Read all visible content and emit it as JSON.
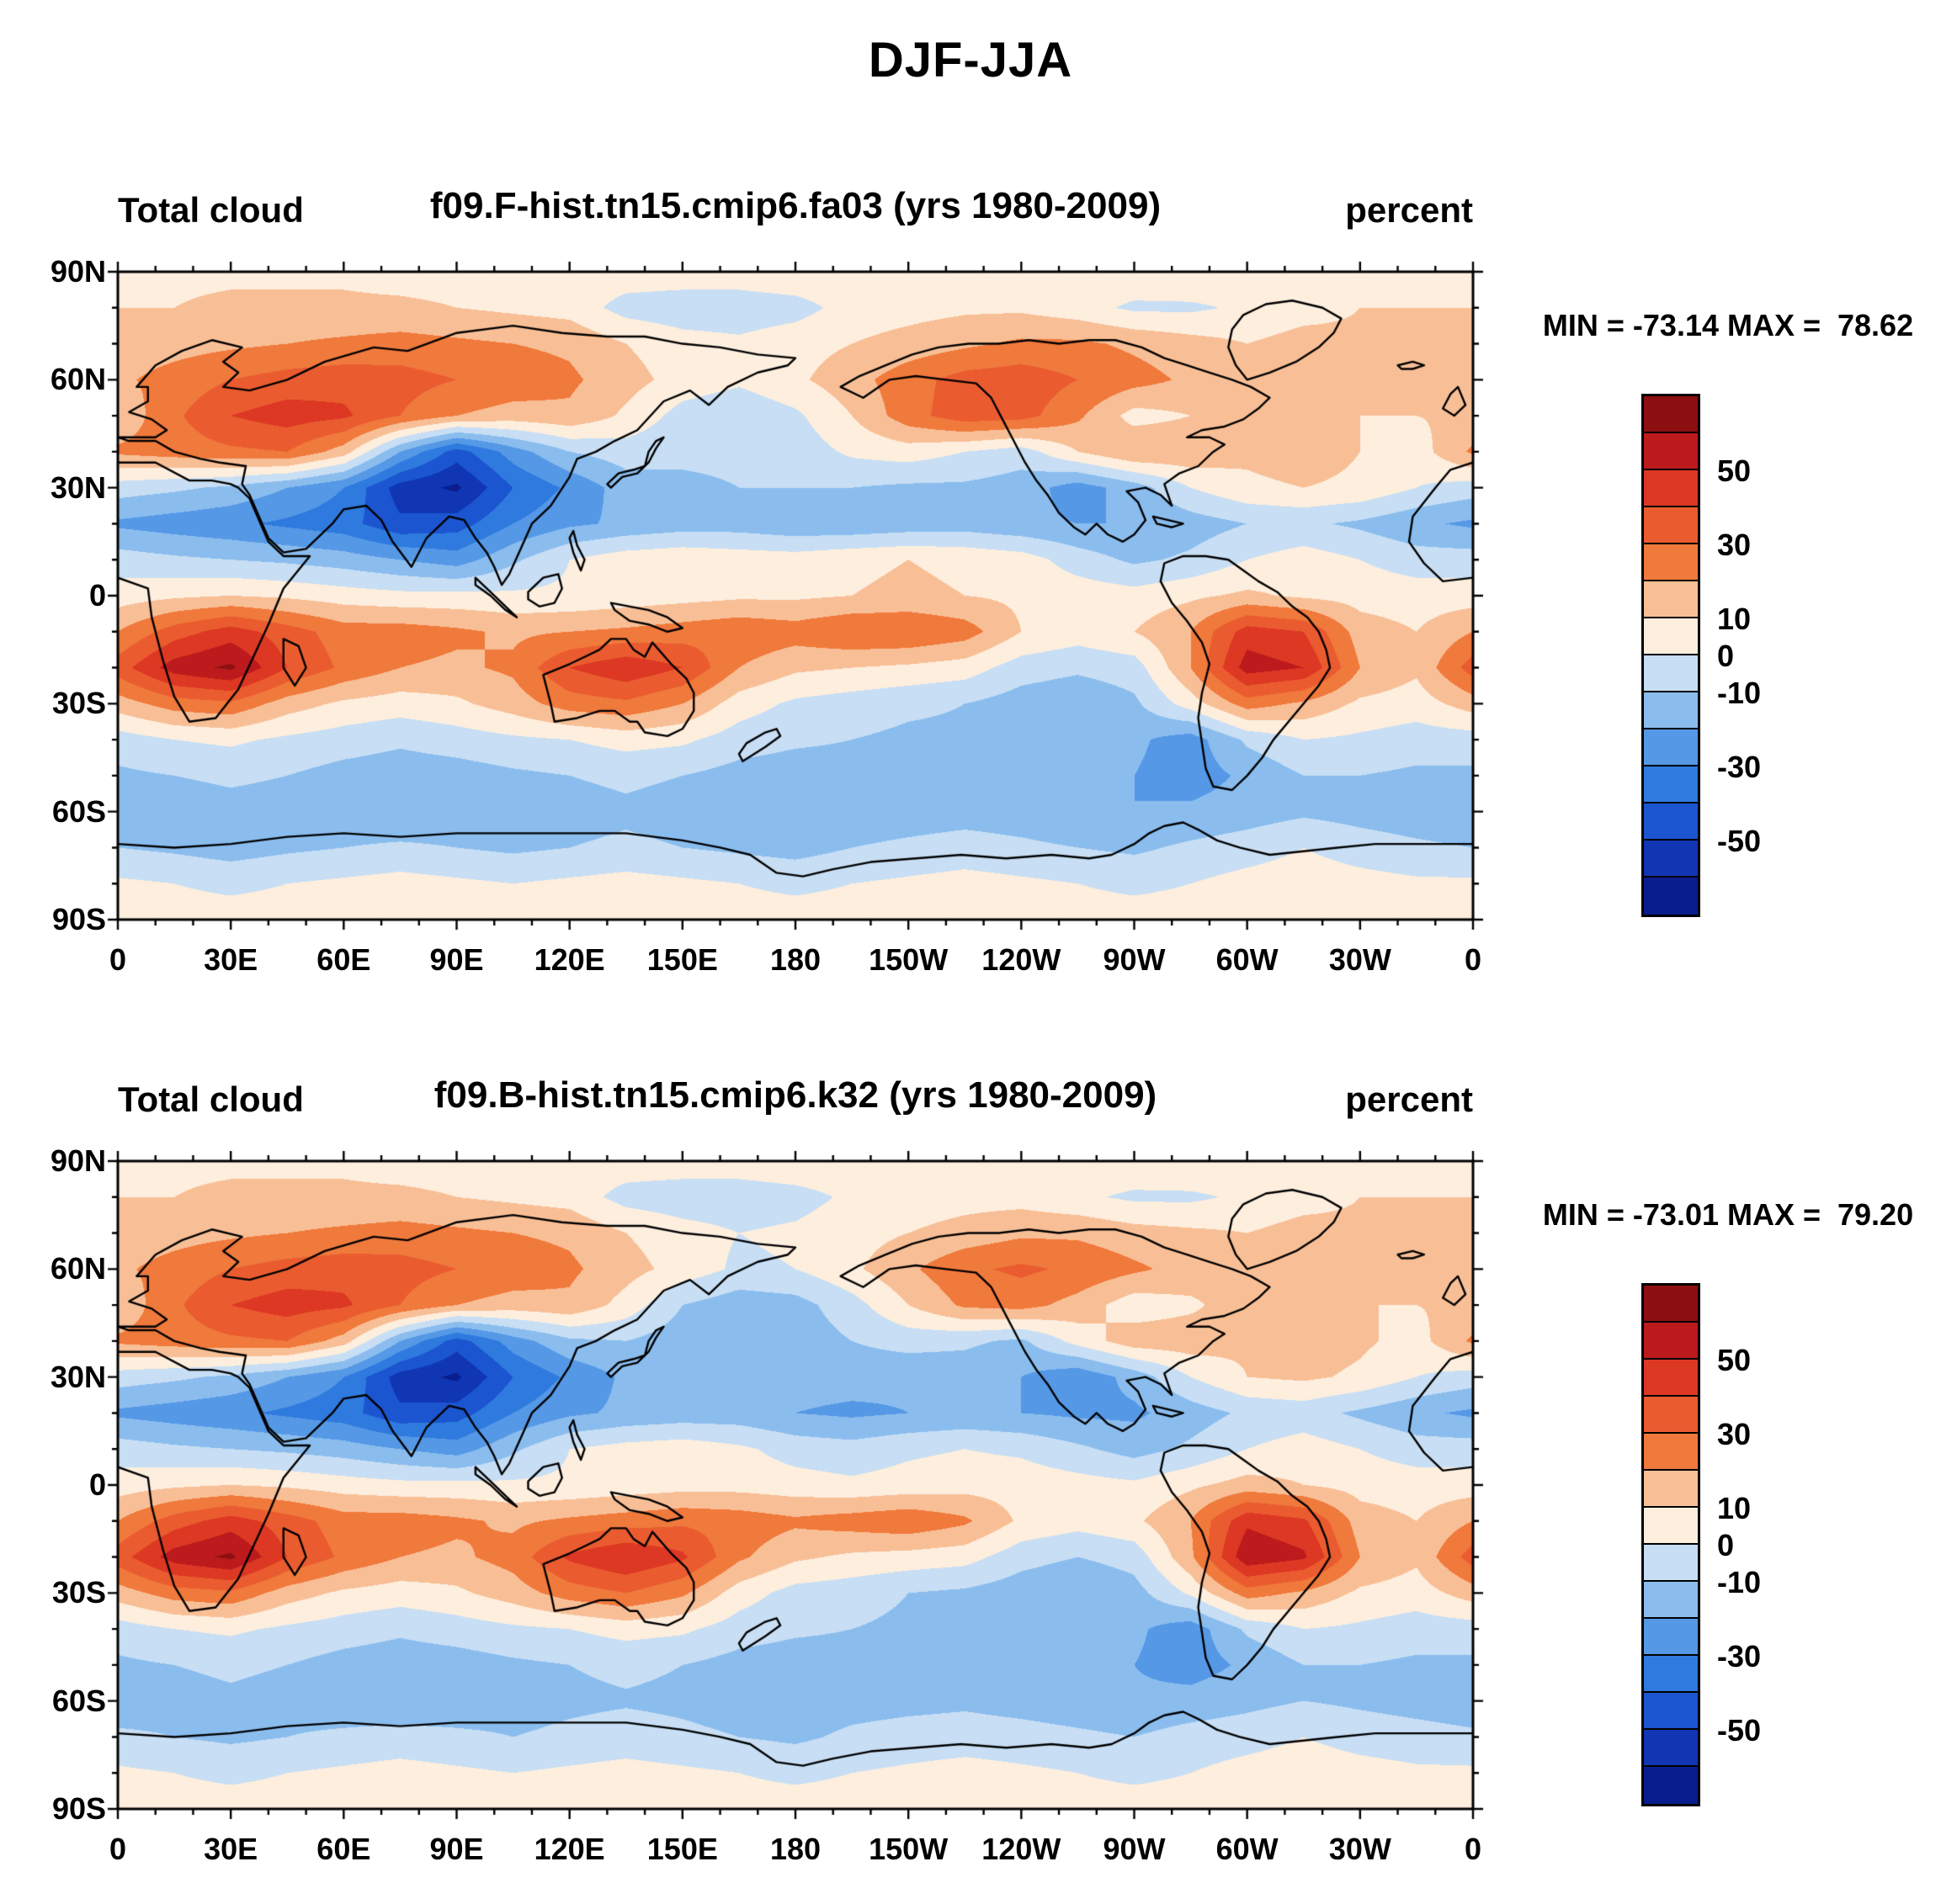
{
  "figure": {
    "title": "DJF-JJA"
  },
  "axes": {
    "lat_tick_degrees": [
      90,
      60,
      30,
      0,
      -30,
      -60,
      -90
    ],
    "lat_ticks": [
      "90N",
      "60N",
      "30N",
      "0",
      "30S",
      "60S",
      "90S"
    ],
    "lon_tick_degrees": [
      0,
      30,
      60,
      90,
      120,
      150,
      180,
      210,
      240,
      270,
      300,
      330,
      360
    ],
    "lon_ticks": [
      "0",
      "30E",
      "60E",
      "90E",
      "120E",
      "150E",
      "180",
      "150W",
      "120W",
      "90W",
      "60W",
      "30W",
      "0"
    ]
  },
  "colorbar": {
    "levels": [
      -60,
      -50,
      -40,
      -30,
      -20,
      -10,
      0,
      10,
      20,
      30,
      40,
      50,
      60
    ],
    "colors": [
      "#0a1d8f",
      "#1036b4",
      "#1b55d0",
      "#2f7ade",
      "#5598e6",
      "#8abdee",
      "#c7def4",
      "#fdeede",
      "#f8bf96",
      "#f0793c",
      "#ea5c30",
      "#dd3823",
      "#bc1a1c",
      "#8d0f12"
    ],
    "label_values": [
      50,
      30,
      10,
      0,
      -10,
      -30,
      -50
    ],
    "labels": [
      "50",
      "30",
      "10",
      "0",
      "-10",
      "-30",
      "-50"
    ]
  },
  "panels": [
    {
      "title_left": "Total cloud",
      "title_center": "f09.F-hist.tn15.cmip6.fa03 (yrs 1980-2009)",
      "title_right": "percent",
      "stats": "MIN = -73.14 MAX =  78.62"
    },
    {
      "title_left": "Total cloud",
      "title_center": "f09.B-hist.tn15.cmip6.k32 (yrs 1980-2009)",
      "title_right": "percent",
      "stats": "MIN = -73.01 MAX =  79.20"
    }
  ],
  "chart_data": [
    {
      "type": "heatmap",
      "variable": "Total cloud",
      "season_difference": "DJF-JJA",
      "title": "f09.F-hist.tn15.cmip6.fa03 (yrs 1980-2009)",
      "units": "percent",
      "min": -73.14,
      "max": 78.62,
      "lon_deg": [
        0,
        15,
        30,
        45,
        60,
        75,
        90,
        105,
        120,
        135,
        150,
        165,
        180,
        195,
        210,
        225,
        240,
        255,
        270,
        285,
        300,
        315,
        330,
        345,
        360
      ],
      "lat_deg": [
        90,
        80,
        70,
        60,
        50,
        40,
        30,
        20,
        10,
        0,
        -10,
        -20,
        -30,
        -40,
        -50,
        -60,
        -70,
        -80,
        -90
      ],
      "values": [
        [
          8,
          8,
          8,
          8,
          8,
          6,
          6,
          6,
          6,
          6,
          6,
          6,
          8,
          8,
          8,
          8,
          8,
          8,
          8,
          10,
          10,
          10,
          8,
          8,
          8
        ],
        [
          10,
          10,
          12,
          12,
          12,
          12,
          10,
          8,
          6,
          -4,
          -6,
          -6,
          -4,
          4,
          6,
          8,
          8,
          4,
          -2,
          -2,
          2,
          6,
          10,
          10,
          10
        ],
        [
          14,
          16,
          18,
          20,
          22,
          24,
          22,
          20,
          18,
          10,
          4,
          2,
          6,
          10,
          14,
          18,
          22,
          22,
          18,
          14,
          10,
          14,
          12,
          12,
          14
        ],
        [
          18,
          24,
          30,
          34,
          36,
          34,
          30,
          26,
          22,
          14,
          6,
          2,
          8,
          16,
          26,
          34,
          36,
          30,
          24,
          18,
          12,
          14,
          12,
          14,
          18
        ],
        [
          12,
          28,
          40,
          45,
          42,
          30,
          20,
          16,
          18,
          8,
          -4,
          -8,
          -2,
          10,
          26,
          36,
          34,
          22,
          6,
          10,
          18,
          12,
          10,
          10,
          12
        ],
        [
          22,
          25,
          28,
          30,
          15,
          -20,
          -45,
          -25,
          -10,
          -5,
          -8,
          -8,
          -6,
          2,
          5,
          0,
          -5,
          10,
          20,
          18,
          12,
          15,
          10,
          5,
          22
        ],
        [
          -5,
          -8,
          -12,
          -20,
          -30,
          -55,
          -62,
          -40,
          -28,
          -15,
          -12,
          -10,
          -10,
          -10,
          -12,
          -12,
          -15,
          -25,
          -15,
          0,
          8,
          10,
          8,
          0,
          -5
        ],
        [
          -22,
          -25,
          -28,
          -32,
          -36,
          -48,
          -45,
          -30,
          -22,
          -18,
          -15,
          -15,
          -18,
          -18,
          -16,
          -15,
          -18,
          -20,
          -20,
          -15,
          -10,
          -8,
          -12,
          -18,
          -22
        ],
        [
          -5,
          -8,
          -10,
          -12,
          -15,
          -20,
          -25,
          -12,
          0,
          6,
          8,
          6,
          5,
          8,
          10,
          8,
          5,
          -5,
          -12,
          -8,
          0,
          5,
          0,
          -5,
          -5
        ],
        [
          5,
          8,
          10,
          8,
          5,
          3,
          3,
          2,
          2,
          4,
          6,
          8,
          8,
          10,
          12,
          10,
          8,
          6,
          4,
          8,
          12,
          8,
          6,
          5,
          5
        ],
        [
          20,
          35,
          45,
          35,
          25,
          25,
          22,
          18,
          20,
          22,
          25,
          28,
          25,
          30,
          30,
          25,
          10,
          5,
          10,
          20,
          45,
          40,
          15,
          10,
          20
        ],
        [
          35,
          55,
          62,
          40,
          28,
          20,
          18,
          22,
          40,
          48,
          40,
          20,
          12,
          10,
          8,
          5,
          -5,
          -8,
          -5,
          20,
          55,
          50,
          20,
          12,
          35
        ],
        [
          15,
          25,
          28,
          15,
          8,
          5,
          8,
          15,
          25,
          28,
          20,
          5,
          -2,
          -5,
          -8,
          -10,
          -15,
          -18,
          -12,
          5,
          25,
          18,
          8,
          5,
          15
        ],
        [
          -5,
          0,
          2,
          -2,
          -5,
          -8,
          -5,
          -2,
          0,
          4,
          2,
          -5,
          -8,
          -10,
          -12,
          -12,
          -14,
          -15,
          -18,
          -25,
          -8,
          0,
          -2,
          -5,
          -5
        ],
        [
          -12,
          -10,
          -8,
          -10,
          -14,
          -16,
          -15,
          -12,
          -10,
          -8,
          -10,
          -14,
          -16,
          -15,
          -14,
          -12,
          -14,
          -16,
          -20,
          -25,
          -18,
          -10,
          -10,
          -12,
          -12
        ],
        [
          -18,
          -16,
          -14,
          -15,
          -18,
          -20,
          -18,
          -15,
          -14,
          -12,
          -14,
          -16,
          -18,
          -16,
          -15,
          -14,
          -15,
          -18,
          -20,
          -18,
          -15,
          -12,
          -14,
          -16,
          -18
        ],
        [
          -10,
          -12,
          -15,
          -12,
          -10,
          -8,
          -10,
          -12,
          -10,
          -8,
          -10,
          -12,
          -14,
          -10,
          -8,
          -6,
          -8,
          -10,
          -12,
          -8,
          -5,
          0,
          -5,
          -8,
          -10
        ],
        [
          2,
          0,
          -2,
          0,
          2,
          4,
          2,
          0,
          2,
          4,
          2,
          0,
          -2,
          0,
          2,
          4,
          2,
          0,
          -2,
          0,
          4,
          6,
          4,
          2,
          2
        ],
        [
          4,
          4,
          4,
          4,
          4,
          4,
          4,
          4,
          4,
          4,
          4,
          4,
          4,
          4,
          4,
          4,
          4,
          4,
          4,
          4,
          4,
          4,
          4,
          4,
          4
        ]
      ]
    },
    {
      "type": "heatmap",
      "variable": "Total cloud",
      "season_difference": "DJF-JJA",
      "title": "f09.B-hist.tn15.cmip6.k32 (yrs 1980-2009)",
      "units": "percent",
      "min": -73.01,
      "max": 79.2,
      "lon_deg": [
        0,
        15,
        30,
        45,
        60,
        75,
        90,
        105,
        120,
        135,
        150,
        165,
        180,
        195,
        210,
        225,
        240,
        255,
        270,
        285,
        300,
        315,
        330,
        345,
        360
      ],
      "lat_deg": [
        90,
        80,
        70,
        60,
        50,
        40,
        30,
        20,
        10,
        0,
        -10,
        -20,
        -30,
        -40,
        -50,
        -60,
        -70,
        -80,
        -90
      ],
      "values": [
        [
          8,
          8,
          8,
          8,
          8,
          6,
          6,
          6,
          6,
          6,
          6,
          6,
          8,
          8,
          8,
          8,
          8,
          8,
          8,
          10,
          10,
          10,
          8,
          8,
          8
        ],
        [
          10,
          10,
          12,
          12,
          12,
          12,
          10,
          8,
          6,
          -4,
          -6,
          -6,
          -4,
          2,
          4,
          6,
          6,
          2,
          -2,
          -2,
          2,
          6,
          10,
          10,
          10
        ],
        [
          14,
          16,
          18,
          20,
          22,
          24,
          22,
          20,
          18,
          10,
          4,
          0,
          2,
          6,
          10,
          14,
          18,
          18,
          14,
          12,
          10,
          14,
          12,
          12,
          14
        ],
        [
          18,
          24,
          30,
          34,
          36,
          34,
          30,
          26,
          22,
          14,
          6,
          -2,
          0,
          8,
          18,
          28,
          32,
          28,
          22,
          16,
          12,
          14,
          12,
          16,
          18
        ],
        [
          12,
          28,
          40,
          45,
          42,
          30,
          20,
          16,
          18,
          6,
          -10,
          -16,
          -14,
          -4,
          10,
          22,
          24,
          16,
          4,
          8,
          16,
          12,
          10,
          10,
          12
        ],
        [
          22,
          25,
          28,
          30,
          15,
          -20,
          -45,
          -25,
          -12,
          -10,
          -16,
          -18,
          -16,
          -10,
          -6,
          -8,
          -12,
          4,
          16,
          16,
          12,
          16,
          12,
          6,
          22
        ],
        [
          -5,
          -8,
          -12,
          -20,
          -30,
          -55,
          -62,
          -40,
          -28,
          -18,
          -16,
          -14,
          -16,
          -16,
          -18,
          -16,
          -20,
          -28,
          -16,
          0,
          10,
          12,
          8,
          0,
          -5
        ],
        [
          -22,
          -25,
          -28,
          -32,
          -36,
          -48,
          -45,
          -30,
          -22,
          -18,
          -16,
          -16,
          -20,
          -22,
          -20,
          -18,
          -20,
          -22,
          -22,
          -15,
          -8,
          -6,
          -12,
          -18,
          -22
        ],
        [
          -5,
          -8,
          -10,
          -12,
          -15,
          -20,
          -25,
          -12,
          0,
          4,
          6,
          2,
          -4,
          -6,
          -2,
          0,
          -2,
          -8,
          -14,
          -8,
          0,
          5,
          0,
          -5,
          -5
        ],
        [
          5,
          8,
          10,
          8,
          5,
          3,
          3,
          2,
          2,
          4,
          6,
          6,
          4,
          2,
          4,
          6,
          6,
          4,
          2,
          8,
          14,
          10,
          6,
          5,
          5
        ],
        [
          20,
          35,
          45,
          35,
          25,
          25,
          22,
          18,
          22,
          25,
          28,
          26,
          22,
          25,
          28,
          22,
          8,
          4,
          8,
          20,
          48,
          42,
          15,
          10,
          20
        ],
        [
          35,
          55,
          62,
          40,
          28,
          20,
          18,
          24,
          42,
          50,
          42,
          22,
          12,
          8,
          6,
          4,
          -6,
          -10,
          -6,
          18,
          58,
          52,
          20,
          12,
          35
        ],
        [
          15,
          25,
          28,
          15,
          8,
          5,
          8,
          15,
          25,
          30,
          22,
          5,
          -4,
          -6,
          -10,
          -12,
          -16,
          -20,
          -14,
          2,
          25,
          18,
          8,
          5,
          15
        ],
        [
          -5,
          0,
          2,
          -2,
          -5,
          -8,
          -5,
          -2,
          0,
          4,
          2,
          -5,
          -8,
          -10,
          -12,
          -12,
          -14,
          -16,
          -18,
          -26,
          -8,
          0,
          -2,
          -5,
          -5
        ],
        [
          -12,
          -10,
          -8,
          -10,
          -14,
          -16,
          -15,
          -12,
          -10,
          -8,
          -10,
          -14,
          -16,
          -15,
          -14,
          -12,
          -14,
          -16,
          -20,
          -25,
          -18,
          -10,
          -10,
          -12,
          -12
        ],
        [
          -16,
          -14,
          -12,
          -14,
          -16,
          -18,
          -16,
          -14,
          -12,
          -11,
          -12,
          -14,
          -16,
          -14,
          -13,
          -12,
          -14,
          -16,
          -18,
          -16,
          -13,
          -10,
          -12,
          -14,
          -16
        ],
        [
          -8,
          -10,
          -12,
          -10,
          -8,
          -6,
          -8,
          -10,
          -8,
          -6,
          -8,
          -10,
          -12,
          -8,
          -6,
          -5,
          -6,
          -8,
          -10,
          -6,
          -4,
          0,
          -4,
          -6,
          -8
        ],
        [
          2,
          0,
          -2,
          0,
          2,
          4,
          2,
          0,
          2,
          4,
          2,
          0,
          -2,
          0,
          2,
          4,
          2,
          0,
          -2,
          0,
          4,
          6,
          4,
          2,
          2
        ],
        [
          4,
          4,
          4,
          4,
          4,
          4,
          4,
          4,
          4,
          4,
          4,
          4,
          4,
          4,
          4,
          4,
          4,
          4,
          4,
          4,
          4,
          4,
          4,
          4,
          4
        ]
      ]
    }
  ]
}
